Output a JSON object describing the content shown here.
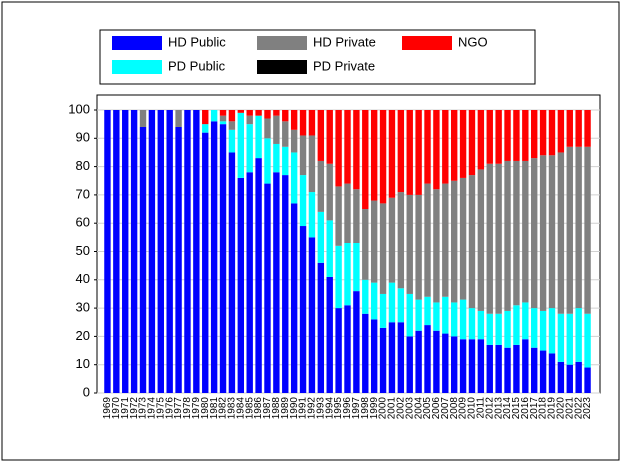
{
  "chart_data": {
    "type": "stacked_bar",
    "categories": [
      "1969",
      "1970",
      "1971",
      "1972",
      "1973",
      "1974",
      "1975",
      "1976",
      "1977",
      "1978",
      "1979",
      "1980",
      "1981",
      "1982",
      "1983",
      "1984",
      "1985",
      "1986",
      "1987",
      "1988",
      "1989",
      "1990",
      "1991",
      "1992",
      "1993",
      "1994",
      "1995",
      "1996",
      "1997",
      "1998",
      "1999",
      "2000",
      "2001",
      "2002",
      "2003",
      "2004",
      "2005",
      "2006",
      "2007",
      "2008",
      "2009",
      "2010",
      "2011",
      "2012",
      "2013",
      "2014",
      "2015",
      "2016",
      "2017",
      "2018",
      "2019",
      "2020",
      "2021",
      "2022",
      "2023"
    ],
    "series": [
      {
        "name": "HD Public",
        "color": "#0000ff",
        "values": [
          100,
          100,
          100,
          100,
          94,
          100,
          100,
          100,
          94,
          100,
          100,
          92,
          96,
          95,
          85,
          76,
          78,
          83,
          74,
          78,
          77,
          67,
          59,
          55,
          46,
          41,
          30,
          31,
          36,
          28,
          26,
          23,
          25,
          25,
          20,
          22,
          24,
          22,
          21,
          20,
          19,
          19,
          19,
          17,
          17,
          16,
          17,
          19,
          16,
          15,
          14,
          11,
          10,
          11,
          9
        ]
      },
      {
        "name": "PD Public",
        "color": "#00ffff",
        "values": [
          0,
          0,
          0,
          0,
          0,
          0,
          0,
          0,
          0,
          0,
          0,
          3,
          4,
          1,
          8,
          23,
          17,
          15,
          16,
          10,
          10,
          18,
          18,
          16,
          18,
          20,
          22,
          22,
          17,
          12,
          13,
          12,
          14,
          12,
          15,
          11,
          10,
          10,
          13,
          12,
          14,
          11,
          10,
          11,
          11,
          13,
          14,
          13,
          14,
          14,
          16,
          17,
          18,
          19,
          19
        ]
      },
      {
        "name": "HD Private",
        "color": "#808080",
        "values": [
          0,
          0,
          0,
          0,
          6,
          0,
          0,
          0,
          6,
          0,
          0,
          0,
          0,
          2,
          3,
          0,
          3,
          0,
          7,
          10,
          9,
          8,
          14,
          20,
          18,
          20,
          21,
          21,
          19,
          25,
          29,
          32,
          30,
          34,
          35,
          37,
          40,
          40,
          40,
          43,
          43,
          47,
          50,
          53,
          53,
          53,
          51,
          50,
          53,
          55,
          54,
          57,
          59,
          57,
          59
        ]
      },
      {
        "name": "PD Private",
        "color": "#000000",
        "values": [
          0,
          0,
          0,
          0,
          0,
          0,
          0,
          0,
          0,
          0,
          0,
          0,
          0,
          0,
          0,
          0,
          0,
          0,
          0,
          0,
          0,
          0,
          0,
          0,
          0,
          0,
          0,
          0,
          0,
          0,
          0,
          0,
          0,
          0,
          0,
          0,
          0,
          0,
          0,
          0,
          0,
          0,
          0,
          0,
          0,
          0,
          0,
          0,
          0,
          0,
          0,
          0,
          0,
          0,
          0
        ]
      },
      {
        "name": "NGO",
        "color": "#ff0000",
        "values": [
          0,
          0,
          0,
          0,
          0,
          0,
          0,
          0,
          0,
          0,
          0,
          5,
          0,
          2,
          4,
          1,
          2,
          2,
          3,
          2,
          4,
          7,
          9,
          9,
          18,
          19,
          27,
          26,
          28,
          35,
          32,
          33,
          31,
          29,
          30,
          30,
          26,
          28,
          26,
          25,
          24,
          23,
          21,
          19,
          19,
          18,
          18,
          18,
          17,
          16,
          16,
          15,
          13,
          13,
          13
        ]
      }
    ],
    "ylim": [
      0,
      100
    ],
    "yticks": [
      0,
      10,
      20,
      30,
      40,
      50,
      60,
      70,
      80,
      90,
      100
    ],
    "grid": true
  }
}
